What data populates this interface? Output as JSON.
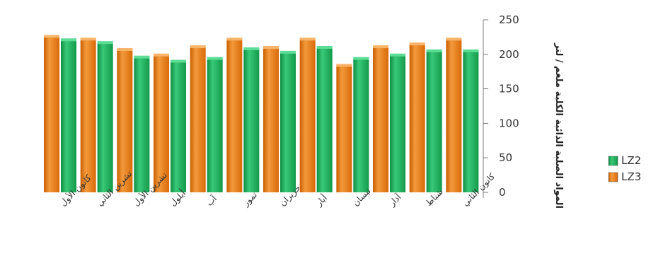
{
  "chart_data": {
    "type": "bar",
    "title": "",
    "xlabel": "",
    "ylabel": "المواد الصلبة الذائبة الكلية ملغم / لتر",
    "ylim": [
      0,
      250
    ],
    "yticks": [
      0,
      50,
      100,
      150,
      200,
      250
    ],
    "categories": [
      "كانون الأول",
      "تشرين الثاني",
      "تشرين الأول",
      "أيلول",
      "آب",
      "تموز",
      "حزيران",
      "أيار",
      "نيسان",
      "آذار",
      "شباط",
      "كانون الثاني"
    ],
    "series": [
      {
        "name": "LZ3",
        "color": "#e8790f",
        "values": [
          226,
          222,
          207,
          199,
          211,
          222,
          210,
          222,
          184,
          211,
          215,
          222
        ]
      },
      {
        "name": "LZ2",
        "color": "#1fae5a",
        "values": [
          221,
          217,
          196,
          190,
          194,
          208,
          203,
          210,
          194,
          199,
          205,
          205
        ]
      }
    ],
    "legend_position": "right",
    "grid": false,
    "y_axis_side": "right"
  }
}
